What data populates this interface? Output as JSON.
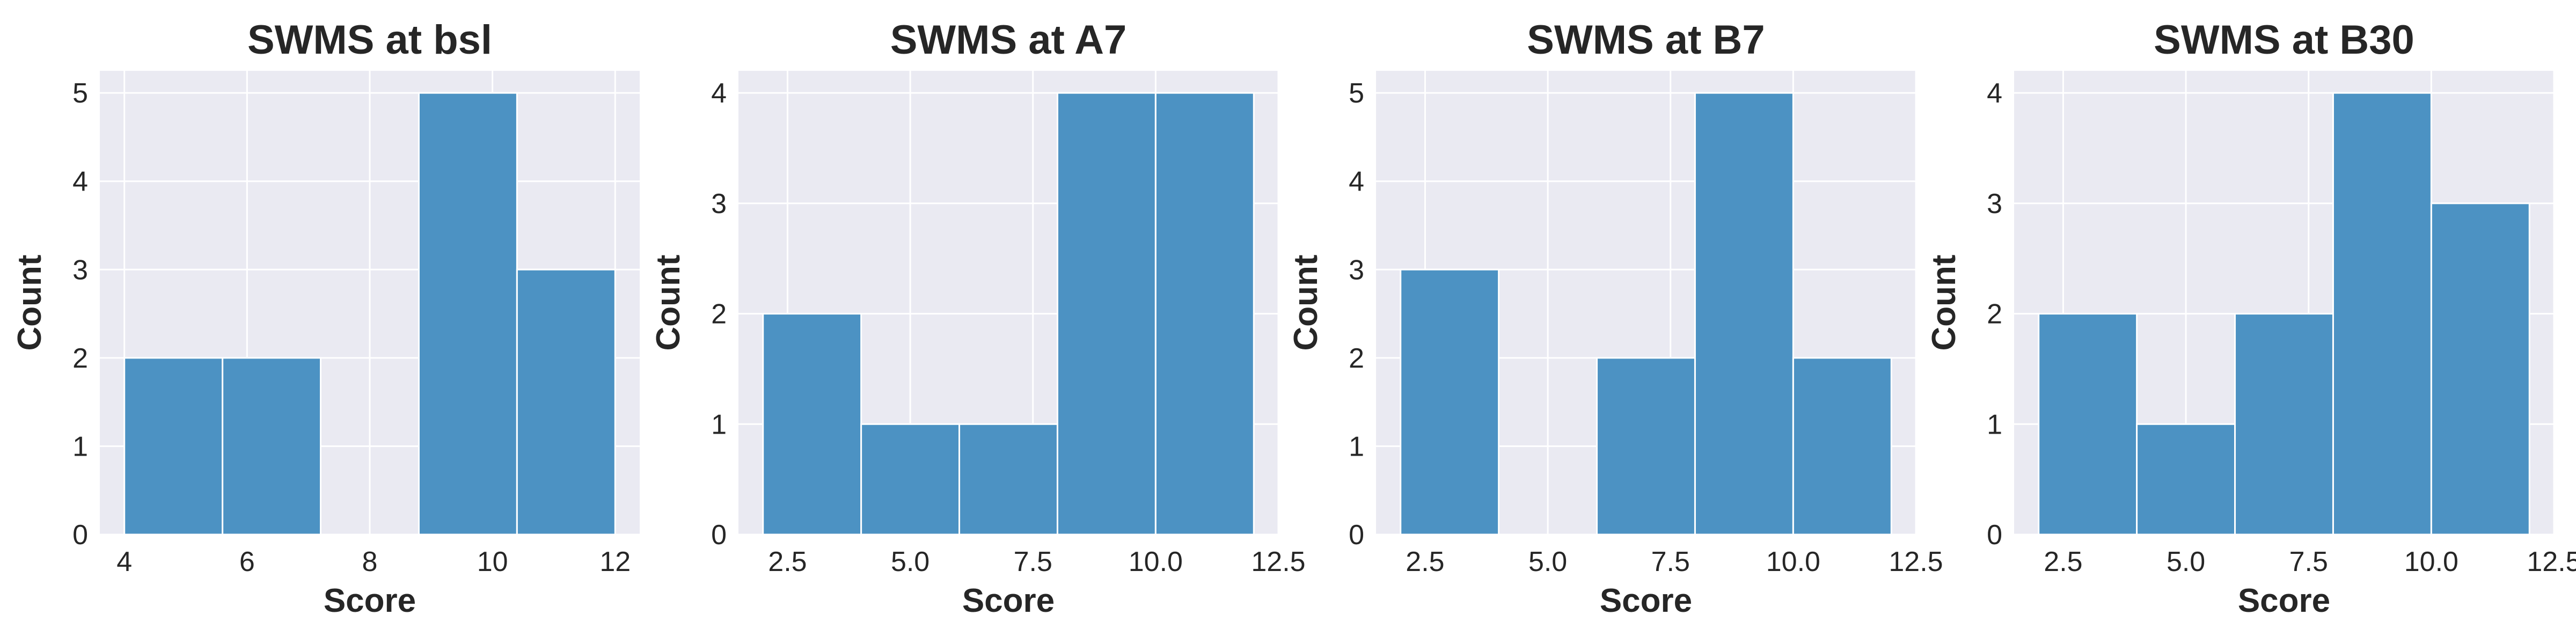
{
  "chart_data": [
    {
      "type": "bar",
      "title": "SWMS at bsl",
      "xlabel": "Score",
      "ylabel": "Count",
      "bins": [
        [
          4.0,
          5.6
        ],
        [
          5.6,
          7.2
        ],
        [
          7.2,
          8.8
        ],
        [
          8.8,
          10.4
        ],
        [
          10.4,
          12.0
        ]
      ],
      "values": [
        2,
        2,
        0,
        5,
        3
      ],
      "xlim": [
        3.6,
        12.4
      ],
      "ylim": [
        0,
        5.25
      ],
      "xticks": [
        4,
        6,
        8,
        10,
        12
      ],
      "xtick_labels": [
        "4",
        "6",
        "8",
        "10",
        "12"
      ],
      "yticks": [
        0,
        1,
        2,
        3,
        4,
        5
      ],
      "ytick_labels": [
        "0",
        "1",
        "2",
        "3",
        "4",
        "5"
      ],
      "grid": true,
      "color": "#4c92c3"
    },
    {
      "type": "bar",
      "title": "SWMS at A7",
      "xlabel": "Score",
      "ylabel": "Count",
      "bins": [
        [
          2.0,
          4.0
        ],
        [
          4.0,
          6.0
        ],
        [
          6.0,
          8.0
        ],
        [
          8.0,
          10.0
        ],
        [
          10.0,
          12.0
        ]
      ],
      "values": [
        2,
        1,
        1,
        4,
        4
      ],
      "xlim": [
        1.5,
        12.5
      ],
      "ylim": [
        0,
        4.2
      ],
      "xticks": [
        2.5,
        5.0,
        7.5,
        10.0,
        12.5
      ],
      "xtick_labels": [
        "2.5",
        "5.0",
        "7.5",
        "10.0",
        "12.5"
      ],
      "yticks": [
        0,
        1,
        2,
        3,
        4
      ],
      "ytick_labels": [
        "0",
        "1",
        "2",
        "3",
        "4"
      ],
      "grid": true,
      "color": "#4c92c3"
    },
    {
      "type": "bar",
      "title": "SWMS at B7",
      "xlabel": "Score",
      "ylabel": "Count",
      "bins": [
        [
          2.0,
          4.0
        ],
        [
          4.0,
          6.0
        ],
        [
          6.0,
          8.0
        ],
        [
          8.0,
          10.0
        ],
        [
          10.0,
          12.0
        ]
      ],
      "values": [
        3,
        0,
        2,
        5,
        2
      ],
      "xlim": [
        1.5,
        12.5
      ],
      "ylim": [
        0,
        5.25
      ],
      "xticks": [
        2.5,
        5.0,
        7.5,
        10.0,
        12.5
      ],
      "xtick_labels": [
        "2.5",
        "5.0",
        "7.5",
        "10.0",
        "12.5"
      ],
      "yticks": [
        0,
        1,
        2,
        3,
        4,
        5
      ],
      "ytick_labels": [
        "0",
        "1",
        "2",
        "3",
        "4",
        "5"
      ],
      "grid": true,
      "color": "#4c92c3"
    },
    {
      "type": "bar",
      "title": "SWMS at B30",
      "xlabel": "Score",
      "ylabel": "Count",
      "bins": [
        [
          2.0,
          4.0
        ],
        [
          4.0,
          6.0
        ],
        [
          6.0,
          8.0
        ],
        [
          8.0,
          10.0
        ],
        [
          10.0,
          12.0
        ]
      ],
      "values": [
        2,
        1,
        2,
        4,
        3
      ],
      "xlim": [
        1.5,
        12.5
      ],
      "ylim": [
        0,
        4.2
      ],
      "xticks": [
        2.5,
        5.0,
        7.5,
        10.0,
        12.5
      ],
      "xtick_labels": [
        "2.5",
        "5.0",
        "7.5",
        "10.0",
        "12.5"
      ],
      "yticks": [
        0,
        1,
        2,
        3,
        4
      ],
      "ytick_labels": [
        "0",
        "1",
        "2",
        "3",
        "4"
      ],
      "grid": true,
      "color": "#4c92c3"
    }
  ]
}
